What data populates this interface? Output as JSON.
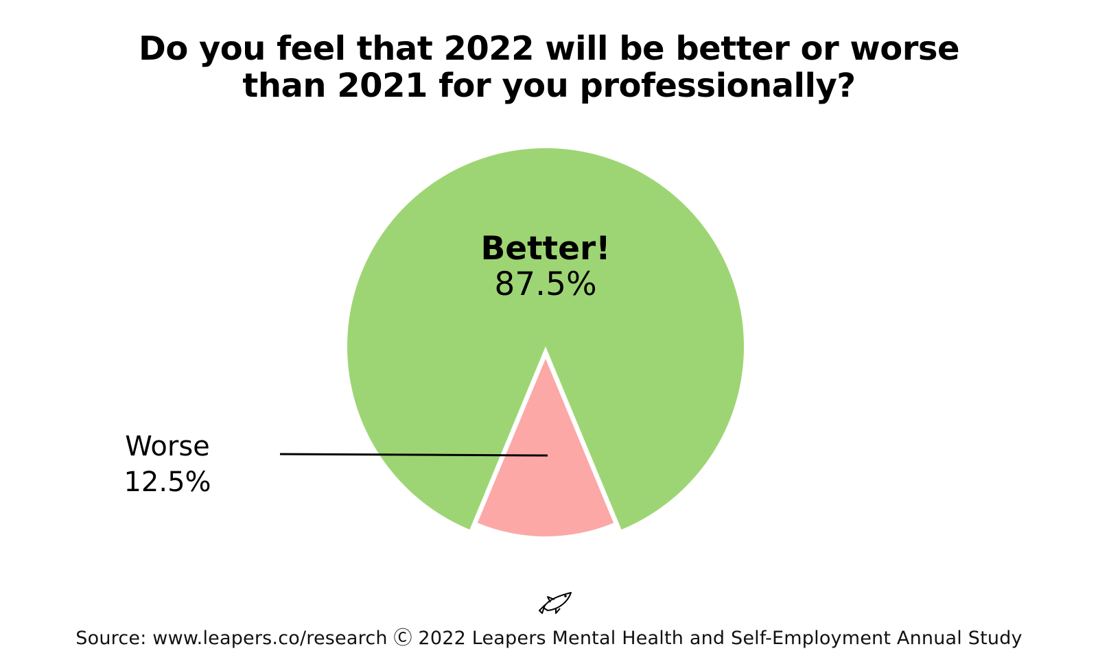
{
  "chart_data": {
    "type": "pie",
    "title": [
      "Do you feel that 2022 will be better or worse",
      "than 2021 for you professionally?"
    ],
    "slices": [
      {
        "label": "Better!",
        "value": 87.5,
        "value_label": "87.5%",
        "color": "#9ed574"
      },
      {
        "label": "Worse",
        "value": 12.5,
        "value_label": "12.5%",
        "color": "#fba8a7"
      }
    ]
  },
  "logo": {
    "icon": "fish-icon"
  },
  "footer": {
    "source": "Source: www.leapers.co/research Ⓒ 2022 Leapers Mental Health and Self-Employment Annual Study"
  }
}
